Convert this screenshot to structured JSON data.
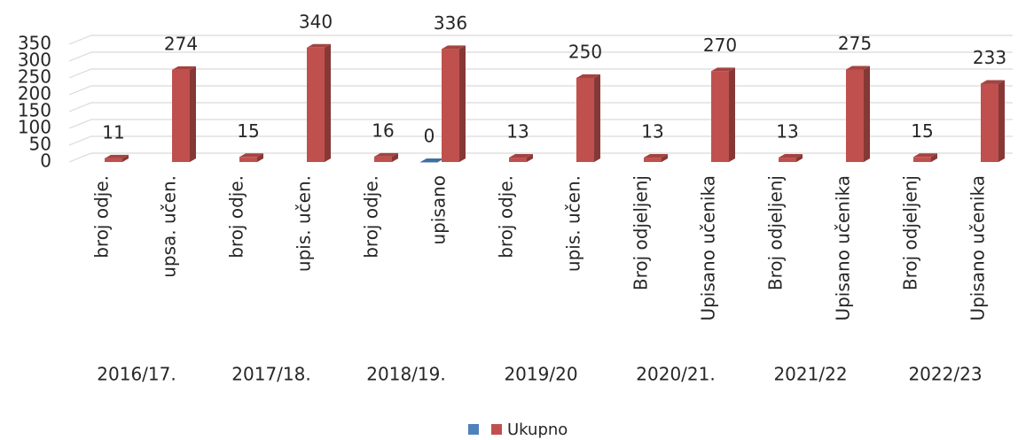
{
  "chart_data": {
    "type": "bar3d",
    "categories": [
      "broj odje.",
      "upsa. učen.",
      "broj odje.",
      "upis. učen.",
      "broj odje.",
      "upisano",
      "broj odje.",
      "upis. učen.",
      "Broj odjeljenj",
      "Upisano učenika",
      "Broj odjeljenj",
      "Upisano učenika",
      "Broj odjeljenj",
      "Upisano učenika"
    ],
    "groups": [
      "2016/17.",
      "2017/18.",
      "2018/19.",
      "2019/20",
      "2020/21.",
      "2021/22",
      "2022/23"
    ],
    "series": [
      {
        "color": "#4f81bd",
        "values": [
          null,
          null,
          null,
          null,
          null,
          0,
          null,
          null,
          null,
          null,
          null,
          null,
          null,
          null
        ]
      },
      {
        "name": "Ukupno",
        "color": "#c0504d",
        "values": [
          11,
          274,
          15,
          340,
          16,
          336,
          13,
          250,
          13,
          270,
          13,
          275,
          15,
          233
        ]
      }
    ],
    "ylim": [
      0,
      350
    ],
    "yticks": [
      0,
      50,
      100,
      150,
      200,
      250,
      300,
      350
    ],
    "grid": true,
    "legend": "bottom"
  }
}
